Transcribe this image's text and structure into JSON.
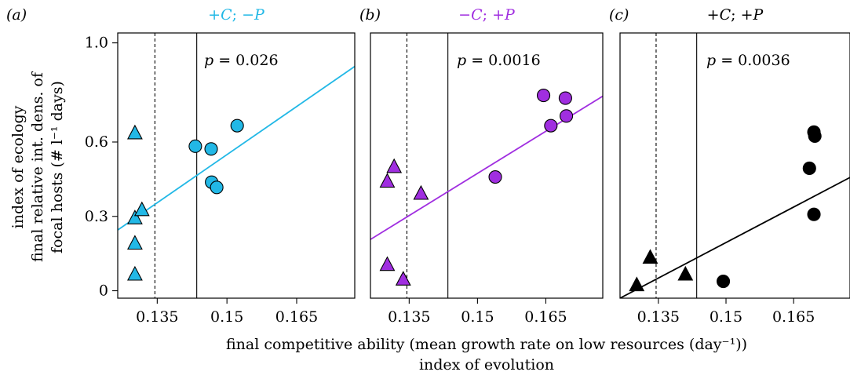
{
  "x_axis_label_line1": "final competitive ability (mean growth rate on low resources (day⁻¹))",
  "x_axis_label_line2": "index of evolution",
  "y_axis_label_line1": "index of ecology",
  "y_axis_label_line2": "final relative int. dens. of",
  "y_axis_label_line3": "focal hosts (# l⁻¹ days)",
  "y_ticks": [
    {
      "value": 0,
      "label": "0"
    },
    {
      "value": 0.3,
      "label": "0.3"
    },
    {
      "value": 0.6,
      "label": "0.6"
    },
    {
      "value": 1.0,
      "label": "1.0"
    }
  ],
  "x_ticks": [
    {
      "value": 0.135,
      "label": "0.135"
    },
    {
      "value": 0.15,
      "label": "0.15"
    },
    {
      "value": 0.165,
      "label": "0.165"
    }
  ],
  "chart_data": [
    {
      "type": "scatter",
      "panel": "(a)",
      "title_parts": [
        "+",
        "C",
        "; −",
        "P"
      ],
      "title_color": "#22b8e6",
      "p_label": "p",
      "p_value": "= 0.026",
      "color": "#22b8e6",
      "xlim": [
        0.1265,
        0.1775
      ],
      "ylim": [
        -0.03,
        1.04
      ],
      "dashed_x": 0.1345,
      "solid_x": 0.1435,
      "regression": {
        "x0": 0.1265,
        "y0": 0.245,
        "x1": 0.1775,
        "y1": 0.905
      },
      "triangles": [
        [
          0.1302,
          0.635
        ],
        [
          0.1302,
          0.292
        ],
        [
          0.1317,
          0.325
        ],
        [
          0.1302,
          0.19
        ],
        [
          0.1302,
          0.065
        ]
      ],
      "circles": [
        [
          0.1432,
          0.583
        ],
        [
          0.1466,
          0.572
        ],
        [
          0.1467,
          0.438
        ],
        [
          0.1478,
          0.417
        ],
        [
          0.1522,
          0.666
        ]
      ]
    },
    {
      "type": "scatter",
      "panel": "(b)",
      "title_parts": [
        "−",
        "C",
        "; +",
        "P"
      ],
      "title_color": "#a02ee0",
      "p_label": "p",
      "p_value": "= 0.0016",
      "color": "#a02ee0",
      "xlim": [
        0.1265,
        0.1775
      ],
      "ylim": [
        -0.03,
        1.04
      ],
      "dashed_x": 0.1345,
      "solid_x": 0.1435,
      "regression": {
        "x0": 0.1265,
        "y0": 0.207,
        "x1": 0.1775,
        "y1": 0.785
      },
      "triangles": [
        [
          0.1302,
          0.104
        ],
        [
          0.1302,
          0.44
        ],
        [
          0.1317,
          0.499
        ],
        [
          0.1337,
          0.045
        ],
        [
          0.1376,
          0.391
        ]
      ],
      "circles": [
        [
          0.1539,
          0.459
        ],
        [
          0.1645,
          0.788
        ],
        [
          0.1661,
          0.666
        ],
        [
          0.1693,
          0.777
        ],
        [
          0.1695,
          0.705
        ]
      ]
    },
    {
      "type": "scatter",
      "panel": "(c)",
      "title_parts": [
        "+",
        "C",
        "; +",
        "P"
      ],
      "title_color": "#000000",
      "p_label": "p",
      "p_value": "= 0.0036",
      "color": "#000000",
      "xlim": [
        0.1265,
        0.1775
      ],
      "ylim": [
        -0.03,
        1.04
      ],
      "dashed_x": 0.1345,
      "solid_x": 0.1435,
      "regression": {
        "x0": 0.1265,
        "y0": -0.03,
        "x1": 0.1775,
        "y1": 0.457
      },
      "triangles": [
        [
          0.1302,
          0.022
        ],
        [
          0.1332,
          0.133
        ],
        [
          0.141,
          0.065
        ]
      ],
      "circles": [
        [
          0.1494,
          0.038
        ],
        [
          0.1695,
          0.308
        ],
        [
          0.1685,
          0.494
        ],
        [
          0.1697,
          0.624
        ],
        [
          0.1695,
          0.64
        ]
      ]
    }
  ]
}
